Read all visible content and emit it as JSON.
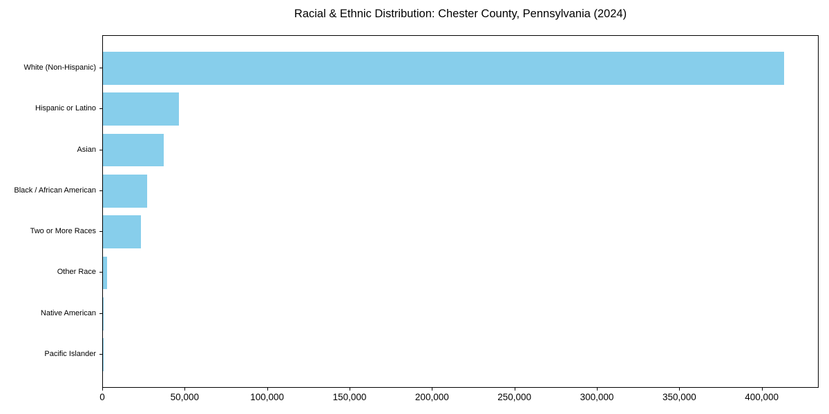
{
  "page": {
    "background_color": "#ffffff",
    "text_color": "#000000"
  },
  "chart_data": {
    "type": "bar",
    "orientation": "horizontal",
    "title": "Racial & Ethnic Distribution: Chester County, Pennsylvania (2024)",
    "categories": [
      "White (Non-Hispanic)",
      "Hispanic or Latino",
      "Asian",
      "Black / African American",
      "Two or More Races",
      "Other Race",
      "Native American",
      "Pacific Islander"
    ],
    "values": [
      413000,
      46000,
      37000,
      27000,
      23000,
      2500,
      600,
      150
    ],
    "xlabel": "",
    "ylabel": "",
    "xlim": [
      0,
      433650
    ],
    "xticks": {
      "values": [
        0,
        50000,
        100000,
        150000,
        200000,
        250000,
        300000,
        350000,
        400000
      ],
      "labels": [
        "0",
        "50,000",
        "100,000",
        "150,000",
        "200,000",
        "250,000",
        "300,000",
        "350,000",
        "400,000"
      ]
    },
    "bar_color": "#87CEEB",
    "axis_color": "#000000",
    "grid": false,
    "legend_position": null
  }
}
